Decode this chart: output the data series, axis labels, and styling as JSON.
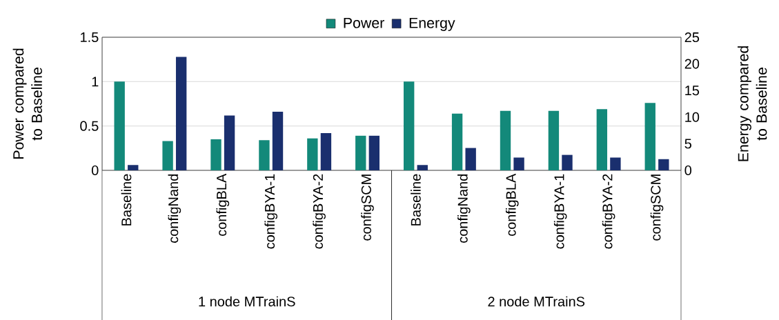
{
  "chart_data": {
    "type": "bar",
    "categories": [
      "Baseline",
      "configNand",
      "configBLA",
      "configBYA-1",
      "configBYA-2",
      "configSCM",
      "Baseline",
      "configNand",
      "configBLA",
      "configBYA-1",
      "configBYA-2",
      "configSCM"
    ],
    "series": [
      {
        "name": "Power",
        "color": "#13897a",
        "values": [
          1.0,
          0.33,
          0.35,
          0.34,
          0.36,
          0.39,
          1.0,
          0.64,
          0.67,
          0.67,
          0.69,
          0.76
        ]
      },
      {
        "name": "Energy",
        "color": "#1a2f6e",
        "axis": "y2",
        "values": [
          1.0,
          21.3,
          10.3,
          11.0,
          7.0,
          6.5,
          1.0,
          4.2,
          2.4,
          2.9,
          2.4,
          2.1
        ]
      }
    ],
    "ylabel": "Power compared to Baseline",
    "y2label": "Energy compared to Baseline",
    "ylim": [
      0,
      1.5
    ],
    "yticks": [
      0,
      0.5,
      1,
      1.5
    ],
    "y2lim": [
      0,
      25
    ],
    "y2ticks": [
      0,
      5,
      10,
      15,
      20,
      25
    ],
    "grid": "y",
    "legend": "top",
    "annotations": [
      "1 node MTrainS",
      "2 node MTrainS"
    ]
  }
}
